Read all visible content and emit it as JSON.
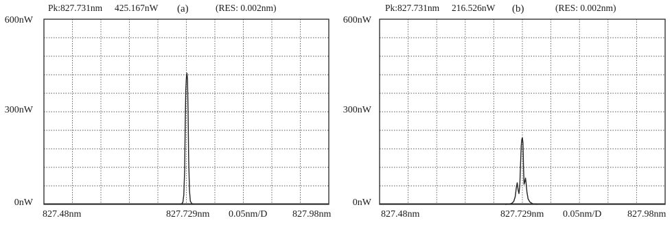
{
  "panels": [
    {
      "header": {
        "peak": "Pk:827.731nm",
        "power": "425.167nW",
        "tag": "(a)",
        "res": "(RES: 0.002nm)"
      },
      "yticks": [
        "600nW",
        "300nW",
        "0nW"
      ],
      "xlabels": {
        "start": "827.48nm",
        "center": "827.729nm",
        "span": "0.05nm/D",
        "end": "827.98nm"
      }
    },
    {
      "header": {
        "peak": "Pk:827.731nm",
        "power": "216.526nW",
        "tag": "(b)",
        "res": "(RES: 0.002nm)"
      },
      "yticks": [
        "600nW",
        "300nW",
        "0nW"
      ],
      "xlabels": {
        "start": "827.48nm",
        "center": "827.729nm",
        "span": "0.05nm/D",
        "end": "827.98nm"
      }
    }
  ],
  "chart_data": [
    {
      "type": "line",
      "title": "(a)",
      "xlim": [
        827.48,
        827.98
      ],
      "ylim": [
        0,
        600
      ],
      "x_unit": "nm",
      "y_unit": "nW",
      "grid": true,
      "series": [
        {
          "x": [
            827.718,
            827.722,
            827.724,
            827.7255,
            827.727,
            827.728,
            827.729,
            827.73,
            827.731,
            827.732,
            827.733,
            827.734,
            827.7355,
            827.737,
            827.74,
            827.744
          ],
          "y": [
            0,
            2,
            8,
            30,
            110,
            260,
            370,
            410,
            425,
            405,
            300,
            150,
            45,
            10,
            2,
            0
          ]
        }
      ]
    },
    {
      "type": "line",
      "title": "(b)",
      "xlim": [
        827.48,
        827.98
      ],
      "ylim": [
        0,
        600
      ],
      "x_unit": "nm",
      "y_unit": "nW",
      "grid": true,
      "series": [
        {
          "x": [
            827.7,
            827.708,
            827.712,
            827.715,
            827.7175,
            827.7195,
            827.721,
            827.7225,
            827.724,
            827.7255,
            827.727,
            827.728,
            827.729,
            827.73,
            827.731,
            827.732,
            827.733,
            827.7345,
            827.7355,
            827.7365,
            827.738,
            827.74,
            827.743,
            827.748,
            827.756
          ],
          "y": [
            0,
            1,
            4,
            10,
            25,
            55,
            70,
            48,
            35,
            60,
            140,
            190,
            210,
            216,
            200,
            120,
            65,
            75,
            85,
            70,
            40,
            18,
            8,
            2,
            0
          ]
        }
      ]
    }
  ]
}
